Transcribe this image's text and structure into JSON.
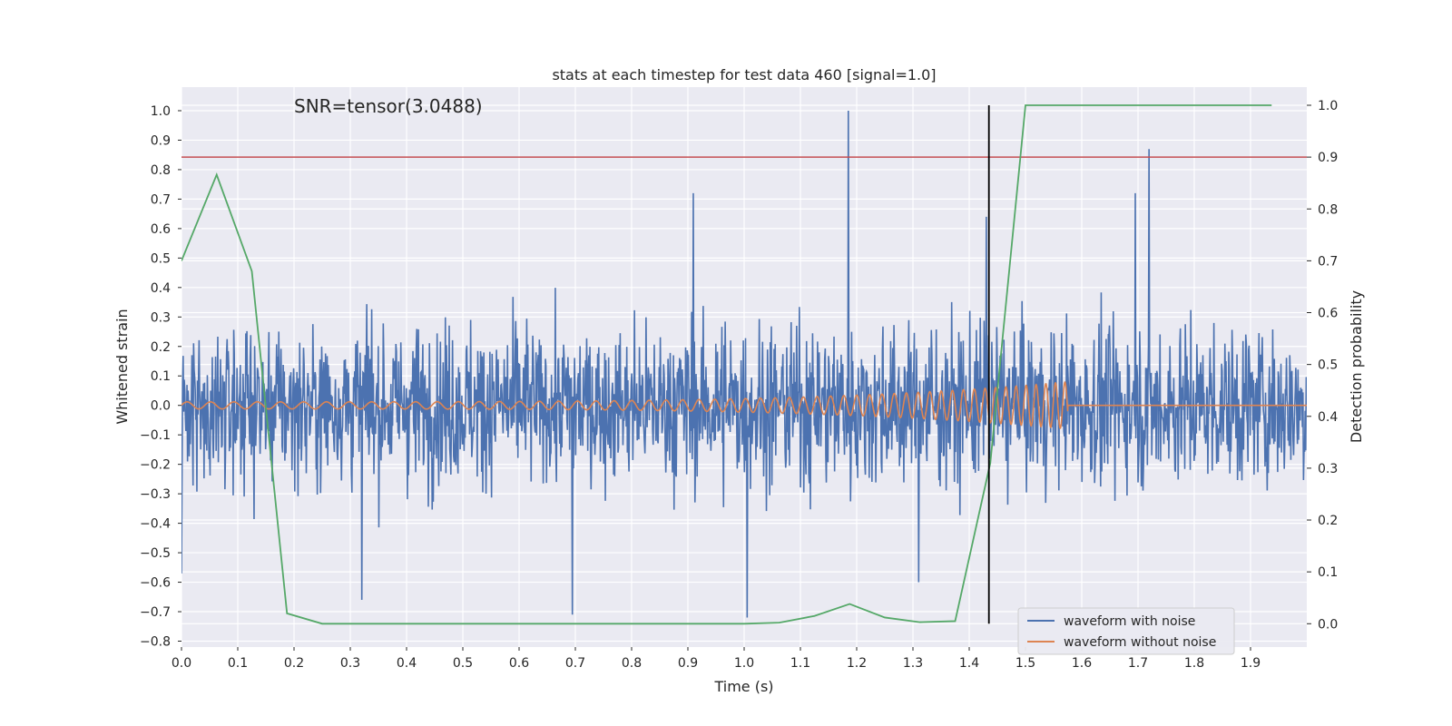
{
  "chart_data": {
    "type": "line",
    "title": "stats at each timestep for test data 460 [signal=1.0]",
    "xlabel": "Time (s)",
    "ylabel": "Whitened strain",
    "y2label": "Detection probability",
    "annotation": "SNR=tensor(3.0488)",
    "xlim": [
      0,
      2.0
    ],
    "ylim": [
      -0.82,
      1.08
    ],
    "y2lim": [
      -0.045,
      1.035
    ],
    "xticks": [
      "0.0",
      "0.1",
      "0.2",
      "0.3",
      "0.4",
      "0.5",
      "0.6",
      "0.7",
      "0.8",
      "0.9",
      "1.0",
      "1.1",
      "1.2",
      "1.3",
      "1.4",
      "1.5",
      "1.6",
      "1.7",
      "1.8",
      "1.9"
    ],
    "yticks": [
      "−0.8",
      "−0.7",
      "−0.6",
      "−0.5",
      "−0.4",
      "−0.3",
      "−0.2",
      "−0.1",
      "0.0",
      "0.1",
      "0.2",
      "0.3",
      "0.4",
      "0.5",
      "0.6",
      "0.7",
      "0.8",
      "0.9",
      "1.0"
    ],
    "y2ticks": [
      "0.0",
      "0.1",
      "0.2",
      "0.3",
      "0.4",
      "0.5",
      "0.6",
      "0.7",
      "0.8",
      "0.9",
      "1.0"
    ],
    "grid": true,
    "legend_placement": "lower-right",
    "series": [
      {
        "name": "waveform with noise",
        "color": "#4c72b0",
        "axis": "left",
        "noise_amplitude": 0.25,
        "num_samples": 2048,
        "peaks": [
          {
            "x": 1.185,
            "y": 1.0
          },
          {
            "x": 1.72,
            "y": 0.87
          },
          {
            "x": 0.91,
            "y": 0.72
          },
          {
            "x": 1.695,
            "y": 0.72
          },
          {
            "x": 1.43,
            "y": 0.64
          },
          {
            "x": 0.0,
            "y": -0.57
          },
          {
            "x": 0.32,
            "y": -0.66
          },
          {
            "x": 0.695,
            "y": -0.71
          },
          {
            "x": 1.005,
            "y": -0.72
          },
          {
            "x": 1.31,
            "y": -0.6
          }
        ]
      },
      {
        "name": "waveform without noise",
        "color": "#dd8452",
        "axis": "left",
        "chirp_end": 1.575,
        "start_freq": 24,
        "end_freq": 60,
        "start_amplitude": 0.012,
        "end_amplitude": 0.08
      },
      {
        "name": "detection probability",
        "color": "#55a868",
        "axis": "right",
        "x": [
          0.0,
          0.0625,
          0.125,
          0.1875,
          0.25,
          0.3125,
          0.375,
          0.4375,
          0.5,
          0.5625,
          0.625,
          0.6875,
          0.75,
          0.8125,
          0.875,
          0.9375,
          1.0,
          1.0625,
          1.125,
          1.1875,
          1.25,
          1.3125,
          1.375,
          1.4375,
          1.5,
          1.5625,
          1.625,
          1.6875,
          1.75,
          1.8125,
          1.875,
          1.9375
        ],
        "y": [
          0.7,
          0.866,
          0.68,
          0.02,
          0.0,
          0.0,
          0.0,
          0.0,
          0.0,
          0.0,
          0.0,
          0.0,
          0.0,
          0.0,
          0.0,
          0.0,
          0.0,
          0.002,
          0.015,
          0.038,
          0.012,
          0.003,
          0.005,
          0.31,
          1.0,
          1.0,
          1.0,
          1.0,
          1.0,
          1.0,
          1.0,
          1.0
        ]
      }
    ],
    "threshold": {
      "axis": "right",
      "value": 0.9,
      "color": "#c44e52"
    },
    "vline": {
      "x": 1.435,
      "color": "#000000"
    }
  }
}
